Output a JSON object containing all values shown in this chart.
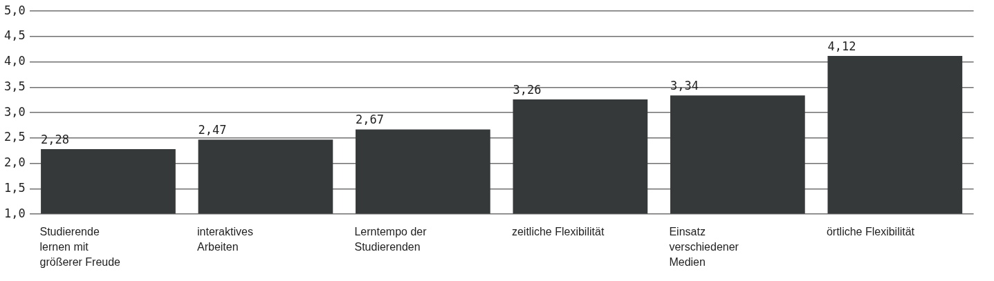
{
  "chart_data": {
    "type": "bar",
    "categories": [
      "Studierende lernen mit größerer Freude",
      "interaktives Arbeiten",
      "Lerntempo der Studierenden",
      "zeitliche Flexibilität",
      "Einsatz verschiedener Medien",
      "örtliche Flexibilität"
    ],
    "values": [
      2.28,
      2.47,
      2.67,
      3.26,
      3.34,
      4.12
    ],
    "value_labels": [
      "2,28",
      "2,47",
      "2,67",
      "3,26",
      "3,34",
      "4,12"
    ],
    "color": "#35393a",
    "ylim": [
      1,
      5
    ],
    "yticks": [
      {
        "value": 1,
        "label": "1,0"
      },
      {
        "value": 1.5,
        "label": "1,5"
      },
      {
        "value": 2,
        "label": "2,0"
      },
      {
        "value": 2.5,
        "label": "2,5"
      },
      {
        "value": 3,
        "label": "3,0"
      },
      {
        "value": 3.5,
        "label": "3,5"
      },
      {
        "value": 4,
        "label": "4,0"
      },
      {
        "value": 4.5,
        "label": "4,5"
      },
      {
        "value": 5,
        "label": "5,0"
      }
    ],
    "grid": "y"
  }
}
